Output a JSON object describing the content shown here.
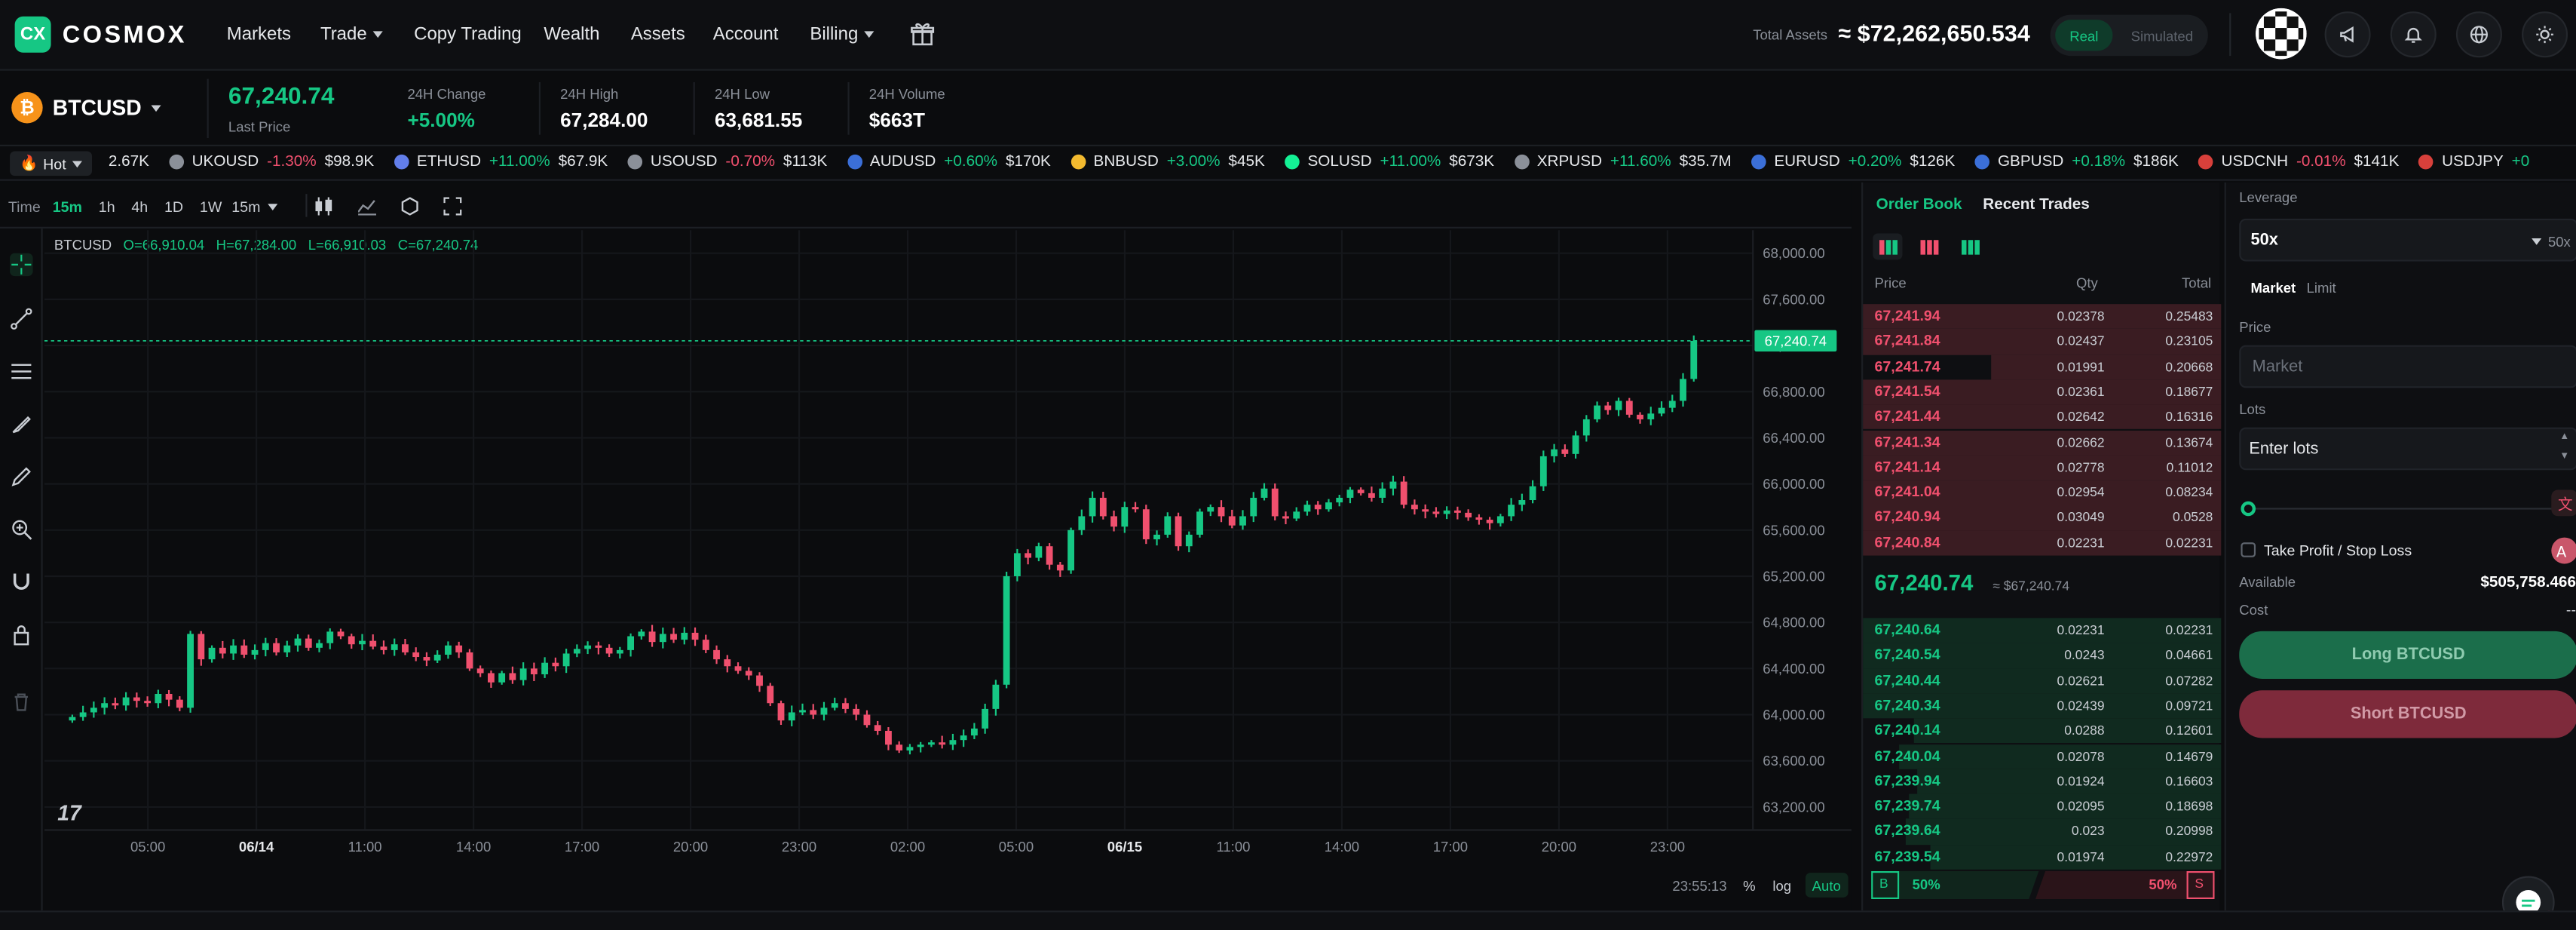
{
  "brand": {
    "logo": "CX",
    "name": "COSMOX"
  },
  "nav": [
    {
      "label": "Markets",
      "caret": false
    },
    {
      "label": "Trade",
      "caret": true
    },
    {
      "label": "Copy Trading",
      "caret": false
    },
    {
      "label": "Wealth",
      "caret": false
    },
    {
      "label": "Assets",
      "caret": false
    },
    {
      "label": "Account",
      "caret": false
    },
    {
      "label": "Billing",
      "caret": true
    }
  ],
  "account": {
    "total_label": "Total Assets",
    "total_value": "≈ $72,262,650.534",
    "mode_real": "Real",
    "mode_sim": "Simulated"
  },
  "header_icons": [
    "gift-icon",
    "megaphone-icon",
    "bell-icon",
    "globe-icon",
    "sun-icon"
  ],
  "symbol": {
    "name": "BTCUSD",
    "last_price": "67,240.74",
    "last_label": "Last Price",
    "change_label": "24H Change",
    "change": "+5.00%",
    "high_label": "24H High",
    "high": "67,284.00",
    "low_label": "24H Low",
    "low": "63,681.55",
    "vol_label": "24H Volume",
    "vol": "$663T"
  },
  "marquee": {
    "hot_label": "Hot",
    "lead_value": "2.67K",
    "items": [
      {
        "name": "UKOUSD",
        "change": "-1.30%",
        "value": "$98.9K",
        "dir": "dn",
        "color": "#8b9099"
      },
      {
        "name": "ETHUSD",
        "change": "+11.00%",
        "value": "$67.9K",
        "dir": "up",
        "color": "#627eea"
      },
      {
        "name": "USOUSD",
        "change": "-0.70%",
        "value": "$113K",
        "dir": "dn",
        "color": "#8b9099"
      },
      {
        "name": "AUDUSD",
        "change": "+0.60%",
        "value": "$170K",
        "dir": "up",
        "color": "#3b6fd8"
      },
      {
        "name": "BNBUSD",
        "change": "+3.00%",
        "value": "$45K",
        "dir": "up",
        "color": "#f3ba2f"
      },
      {
        "name": "SOLUSD",
        "change": "+11.00%",
        "value": "$673K",
        "dir": "up",
        "color": "#14f195"
      },
      {
        "name": "XRPUSD",
        "change": "+11.60%",
        "value": "$35.7M",
        "dir": "up",
        "color": "#8b9099"
      },
      {
        "name": "EURUSD",
        "change": "+0.20%",
        "value": "$126K",
        "dir": "up",
        "color": "#3b6fd8"
      },
      {
        "name": "GBPUSD",
        "change": "+0.18%",
        "value": "$186K",
        "dir": "up",
        "color": "#3b6fd8"
      },
      {
        "name": "USDCNH",
        "change": "-0.01%",
        "value": "$141K",
        "dir": "dn",
        "color": "#d8403b"
      },
      {
        "name": "USDJPY",
        "change": "+0",
        "value": "",
        "dir": "up",
        "color": "#d8403b"
      }
    ]
  },
  "toolbar": {
    "time_label": "Time",
    "intervals": [
      "15m",
      "1h",
      "4h",
      "1D",
      "1W"
    ],
    "active": "15m",
    "select": "15m"
  },
  "chart_data": {
    "type": "candlestick",
    "symbol": "BTCUSD",
    "ohlc_label": {
      "o": "O=66,910.04",
      "h": "H=67,284.00",
      "l": "L=66,910.03",
      "c": "C=67,240.74"
    },
    "y_ticks": [
      "68,000.00",
      "67,600.00",
      "67,200.00",
      "66,800.00",
      "66,400.00",
      "66,000.00",
      "65,600.00",
      "65,200.00",
      "64,800.00",
      "64,400.00",
      "64,000.00",
      "63,600.00",
      "63,200.00"
    ],
    "y_tick_values": [
      68000,
      67600,
      67200,
      66800,
      66400,
      66000,
      65600,
      65200,
      64800,
      64400,
      64000,
      63600,
      63200
    ],
    "ylim": [
      63000,
      68200
    ],
    "x_ticks": [
      "05:00",
      "06/14",
      "11:00",
      "14:00",
      "17:00",
      "20:00",
      "23:00",
      "02:00",
      "05:00",
      "06/15",
      "11:00",
      "14:00",
      "17:00",
      "20:00",
      "23:00"
    ],
    "x_tick_bold": [
      false,
      true,
      false,
      false,
      false,
      false,
      false,
      false,
      false,
      true,
      false,
      false,
      false,
      false,
      false
    ],
    "last_price_tag": "67,240.74",
    "last_price": 67240.74,
    "time_readout": "23:55:13",
    "scale_buttons": [
      "%",
      "log",
      "Auto"
    ],
    "closes": [
      63980,
      64020,
      64060,
      64100,
      64080,
      64150,
      64120,
      64100,
      64180,
      64130,
      64060,
      64700,
      64480,
      64580,
      64530,
      64600,
      64520,
      64560,
      64620,
      64540,
      64600,
      64660,
      64580,
      64620,
      64720,
      64680,
      64610,
      64640,
      64590,
      64560,
      64610,
      64540,
      64500,
      64470,
      64520,
      64600,
      64540,
      64400,
      64360,
      64280,
      64360,
      64300,
      64400,
      64350,
      64450,
      64420,
      64530,
      64570,
      64600,
      64580,
      64530,
      64560,
      64680,
      64720,
      64630,
      64700,
      64650,
      64710,
      64650,
      64560,
      64480,
      64420,
      64380,
      64340,
      64250,
      64100,
      63950,
      64020,
      64040,
      64000,
      64060,
      64100,
      64050,
      64000,
      63910,
      63860,
      63740,
      63690,
      63720,
      63740,
      63760,
      63740,
      63780,
      63820,
      63880,
      64050,
      64260,
      65200,
      65400,
      65360,
      65460,
      65300,
      65250,
      65600,
      65720,
      65880,
      65720,
      65630,
      65800,
      65780,
      65520,
      65560,
      65720,
      65460,
      65560,
      65760,
      65800,
      65720,
      65640,
      65720,
      65880,
      65960,
      65720,
      65700,
      65760,
      65820,
      65780,
      65840,
      65880,
      65950,
      65920,
      65880,
      65960,
      66020,
      65820,
      65780,
      65760,
      65740,
      65770,
      65750,
      65710,
      65690,
      65660,
      65720,
      65820,
      65860,
      65980,
      66240,
      66300,
      66260,
      66420,
      66560,
      66680,
      66640,
      66720,
      66600,
      66560,
      66610,
      66660,
      66720,
      66910,
      67240
    ]
  },
  "order_book": {
    "tab_active": "Order Book",
    "tab_other": "Recent Trades",
    "col_price": "Price",
    "col_qty": "Qty",
    "col_total": "Total",
    "asks": [
      {
        "price": "67,241.94",
        "qty": "0.02378",
        "total": "0.25483",
        "depth": 1.0
      },
      {
        "price": "67,241.84",
        "qty": "0.02437",
        "total": "0.23105",
        "depth": 1.0
      },
      {
        "price": "67,241.74",
        "qty": "0.01991",
        "total": "0.20668",
        "depth": 0.64
      },
      {
        "price": "67,241.54",
        "qty": "0.02361",
        "total": "0.18677",
        "depth": 1.0
      },
      {
        "price": "67,241.44",
        "qty": "0.02642",
        "total": "0.16316",
        "depth": 1.0
      },
      {
        "price": "67,241.34",
        "qty": "0.02662",
        "total": "0.13674",
        "depth": 1.0
      },
      {
        "price": "67,241.14",
        "qty": "0.02778",
        "total": "0.11012",
        "depth": 1.0
      },
      {
        "price": "67,241.04",
        "qty": "0.02954",
        "total": "0.08234",
        "depth": 1.0
      },
      {
        "price": "67,240.94",
        "qty": "0.03049",
        "total": "0.0528",
        "depth": 1.0
      },
      {
        "price": "67,240.84",
        "qty": "0.02231",
        "total": "0.02231",
        "depth": 1.0
      }
    ],
    "mid_price": "67,240.74",
    "mid_usd": "≈ $67,240.74",
    "bids": [
      {
        "price": "67,240.64",
        "qty": "0.02231",
        "total": "0.02231",
        "depth": 1.0
      },
      {
        "price": "67,240.54",
        "qty": "0.0243",
        "total": "0.04661",
        "depth": 1.0
      },
      {
        "price": "67,240.44",
        "qty": "0.02621",
        "total": "0.07282",
        "depth": 1.0
      },
      {
        "price": "67,240.34",
        "qty": "0.02439",
        "total": "0.09721",
        "depth": 1.0
      },
      {
        "price": "67,240.14",
        "qty": "0.0288",
        "total": "0.12601",
        "depth": 0.86
      },
      {
        "price": "67,240.04",
        "qty": "0.02078",
        "total": "0.14679",
        "depth": 0.9
      },
      {
        "price": "67,239.94",
        "qty": "0.01924",
        "total": "0.16603",
        "depth": 0.85
      },
      {
        "price": "67,239.74",
        "qty": "0.02095",
        "total": "0.18698",
        "depth": 0.87
      },
      {
        "price": "67,239.64",
        "qty": "0.023",
        "total": "0.20998",
        "depth": 0.88
      },
      {
        "price": "67,239.54",
        "qty": "0.01974",
        "total": "0.22972",
        "depth": 0.81
      }
    ],
    "ratio_buy_tag": "B",
    "ratio_buy": "50%",
    "ratio_sell": "50%",
    "ratio_sell_tag": "S"
  },
  "order_panel": {
    "leverage_label": "Leverage",
    "leverage_value": "50x",
    "leverage_suffix": "50x",
    "type_market": "Market",
    "type_limit": "Limit",
    "price_label": "Price",
    "price_placeholder": "Market",
    "lots_label": "Lots",
    "lots_placeholder": "Enter lots",
    "tpsl_label": "Take Profit / Stop Loss",
    "available_label": "Available",
    "available_value": "$505,758.466",
    "cost_label": "Cost",
    "cost_value": "--",
    "long_btn": "Long BTCUSD",
    "short_btn": "Short BTCUSD"
  },
  "colors": {
    "up": "#16c784",
    "down": "#f0506e",
    "accent": "#16c784"
  }
}
